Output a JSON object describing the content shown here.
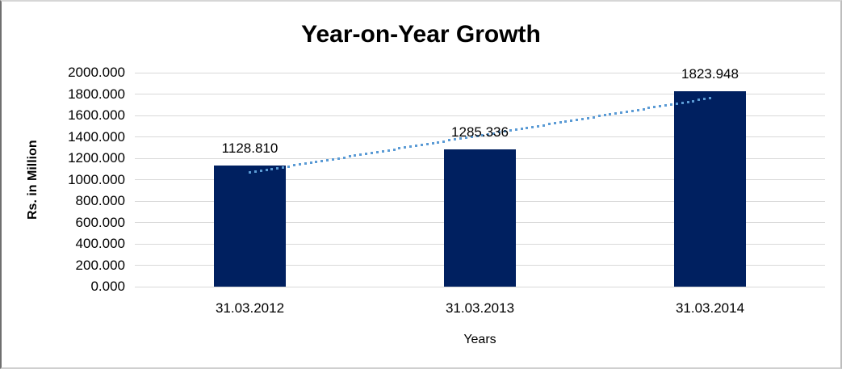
{
  "frame": {
    "background": "#ffffff",
    "border_color": "#bdbdbd"
  },
  "chart_data": {
    "type": "bar",
    "title": "Year-on-Year Growth",
    "xlabel": "Years",
    "ylabel": "Rs. in Million",
    "categories": [
      "31.03.2012",
      "31.03.2013",
      "31.03.2014"
    ],
    "values": [
      1128.81,
      1285.336,
      1823.948
    ],
    "data_labels": [
      "1128.810",
      "1285.336",
      "1823.948"
    ],
    "ylim": [
      0,
      2000
    ],
    "ytick_step": 200,
    "ytick_labels": [
      "0.000",
      "200.000",
      "400.000",
      "600.000",
      "800.000",
      "1000.000",
      "1200.000",
      "1400.000",
      "1600.000",
      "1800.000",
      "2000.000"
    ],
    "grid": true,
    "legend": "none",
    "bar_color": "#002060",
    "gridline_color": "#d9d9d9",
    "text_color": "#000000",
    "trendline": {
      "kind": "linear",
      "style": "dotted",
      "color": "#5b9bd5"
    }
  }
}
